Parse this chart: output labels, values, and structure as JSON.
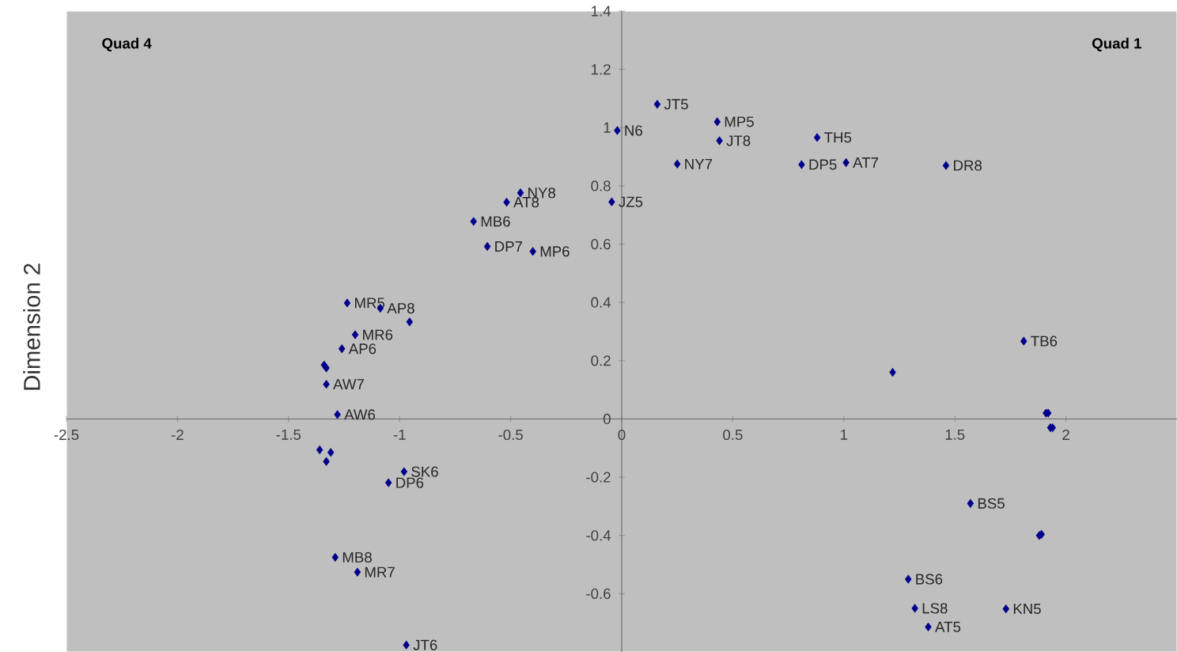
{
  "chart_data": {
    "type": "scatter",
    "ylabel": "Dimension 2",
    "xlim": [
      -2.5,
      2.5
    ],
    "ylim": [
      -0.8,
      1.4
    ],
    "xticks": [
      -2.5,
      -2,
      -1.5,
      -1,
      -0.5,
      0,
      0.5,
      1,
      1.5,
      2
    ],
    "yticks": [
      -0.6,
      -0.4,
      -0.2,
      0,
      0.2,
      0.4,
      0.6,
      0.8,
      1,
      1.2,
      1.4
    ],
    "grid": false,
    "marker": "diamond",
    "series": [
      {
        "color": "#00008b",
        "x": [
          0.16,
          -0.02,
          0.43,
          0.44,
          0.25,
          0.88,
          0.81,
          1.01,
          1.46,
          -0.045,
          -0.456,
          -0.518,
          -0.667,
          -0.605,
          -0.4,
          -1.236,
          -1.087,
          -0.955,
          -1.2,
          -1.26,
          -1.34,
          -1.33,
          -1.33,
          -1.28,
          -1.36,
          -1.31,
          -1.33,
          -0.98,
          -1.05,
          -1.29,
          -1.19,
          -0.97,
          1.81,
          1.22,
          1.91,
          1.92,
          1.93,
          1.94,
          1.57,
          1.88,
          1.89,
          1.29,
          1.32,
          1.38,
          1.73
        ],
        "values": [
          1.08,
          0.99,
          1.02,
          0.955,
          0.875,
          0.966,
          0.873,
          0.88,
          0.87,
          0.745,
          0.776,
          0.744,
          0.678,
          0.592,
          0.575,
          0.398,
          0.38,
          0.333,
          0.289,
          0.241,
          0.185,
          0.175,
          0.119,
          0.015,
          -0.106,
          -0.115,
          -0.146,
          -0.181,
          -0.219,
          -0.475,
          -0.526,
          -0.776,
          0.267,
          0.16,
          0.02,
          0.02,
          -0.03,
          -0.03,
          -0.29,
          -0.4,
          -0.396,
          -0.55,
          -0.65,
          -0.714,
          -0.652
        ]
      }
    ],
    "annotations": [
      "Quad 4",
      "Quad 1",
      {
        "text": "JT5",
        "x": 0.16,
        "y": 1.08
      },
      {
        "text": "N6",
        "x": -0.02,
        "y": 0.99
      },
      {
        "text": "MP5",
        "x": 0.43,
        "y": 1.02
      },
      {
        "text": "JT8",
        "x": 0.44,
        "y": 0.955
      },
      {
        "text": "NY7",
        "x": 0.25,
        "y": 0.875
      },
      {
        "text": "TH5",
        "x": 0.88,
        "y": 0.966
      },
      {
        "text": "DP5",
        "x": 0.81,
        "y": 0.873
      },
      {
        "text": "AT7",
        "x": 1.01,
        "y": 0.88
      },
      {
        "text": "DR8",
        "x": 1.46,
        "y": 0.87
      },
      {
        "text": "JZ5",
        "x": -0.045,
        "y": 0.745
      },
      {
        "text": "NY8",
        "x": -0.456,
        "y": 0.776
      },
      {
        "text": "AT8",
        "x": -0.518,
        "y": 0.744
      },
      {
        "text": "MB6",
        "x": -0.667,
        "y": 0.678
      },
      {
        "text": "DP7",
        "x": -0.605,
        "y": 0.592
      },
      {
        "text": "MP6",
        "x": -0.4,
        "y": 0.575
      },
      {
        "text": "MR5",
        "x": -1.236,
        "y": 0.398
      },
      {
        "text": "AP8",
        "x": -1.087,
        "y": 0.38
      },
      {
        "text": "MR6",
        "x": -1.2,
        "y": 0.289
      },
      {
        "text": "AP6",
        "x": -1.26,
        "y": 0.241
      },
      {
        "text": "AW7",
        "x": -1.33,
        "y": 0.119
      },
      {
        "text": "AW6",
        "x": -1.28,
        "y": 0.015
      },
      {
        "text": "SK6",
        "x": -0.98,
        "y": -0.181
      },
      {
        "text": "DP6",
        "x": -1.05,
        "y": -0.219
      },
      {
        "text": "MB8",
        "x": -1.29,
        "y": -0.475
      },
      {
        "text": "MR7",
        "x": -1.19,
        "y": -0.526
      },
      {
        "text": "JT6",
        "x": -0.97,
        "y": -0.776
      },
      {
        "text": "TB6",
        "x": 1.81,
        "y": 0.267
      },
      {
        "text": "BS5",
        "x": 1.57,
        "y": -0.29
      },
      {
        "text": "BS6",
        "x": 1.29,
        "y": -0.55
      },
      {
        "text": "LS8",
        "x": 1.32,
        "y": -0.65
      },
      {
        "text": "AT5",
        "x": 1.38,
        "y": -0.714
      },
      {
        "text": "KN5",
        "x": 1.73,
        "y": -0.652
      }
    ]
  }
}
